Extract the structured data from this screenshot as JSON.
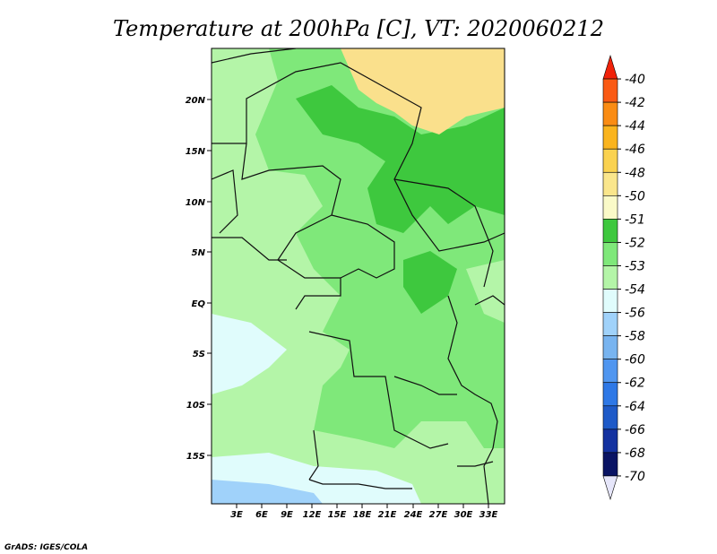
{
  "title": "Temperature at 200hPa [C], VT: 2020060212",
  "credit": "GrADS: IGES/COLA",
  "map": {
    "lat_ticks": [
      "20N",
      "15N",
      "10N",
      "5N",
      "EQ",
      "5S",
      "10S",
      "15S"
    ],
    "lon_ticks": [
      "3E",
      "6E",
      "9E",
      "12E",
      "15E",
      "18E",
      "21E",
      "24E",
      "27E",
      "30E",
      "33E"
    ],
    "fields": [
      {
        "name": "base-53",
        "color": "#7fe87a"
      },
      {
        "name": "band-54-west",
        "color": "#b4f5a8"
      },
      {
        "name": "band-52-north",
        "color": "#3ec83e"
      },
      {
        "name": "band-51-northeast",
        "color": "#fae08c"
      },
      {
        "name": "band-55-southwest",
        "color": "#e0fcfc"
      },
      {
        "name": "band-56-southwest-corner",
        "color": "#a0d2fa"
      }
    ]
  },
  "colorbar": {
    "labels": [
      "-40",
      "-42",
      "-44",
      "-46",
      "-48",
      "-50",
      "-51",
      "-52",
      "-53",
      "-54",
      "-56",
      "-58",
      "-60",
      "-62",
      "-64",
      "-66",
      "-68",
      "-70"
    ],
    "colors": [
      "#f0220a",
      "#fa5a14",
      "#fa8c14",
      "#fab41e",
      "#fad250",
      "#fae68c",
      "#fafac8",
      "#3ec83e",
      "#7fe87a",
      "#b4f5a8",
      "#e0fcfc",
      "#a0d2fa",
      "#78b4f0",
      "#5096f0",
      "#2e78e6",
      "#1e5ac8",
      "#1432a0",
      "#0a1464",
      "#e6e6fa"
    ]
  }
}
